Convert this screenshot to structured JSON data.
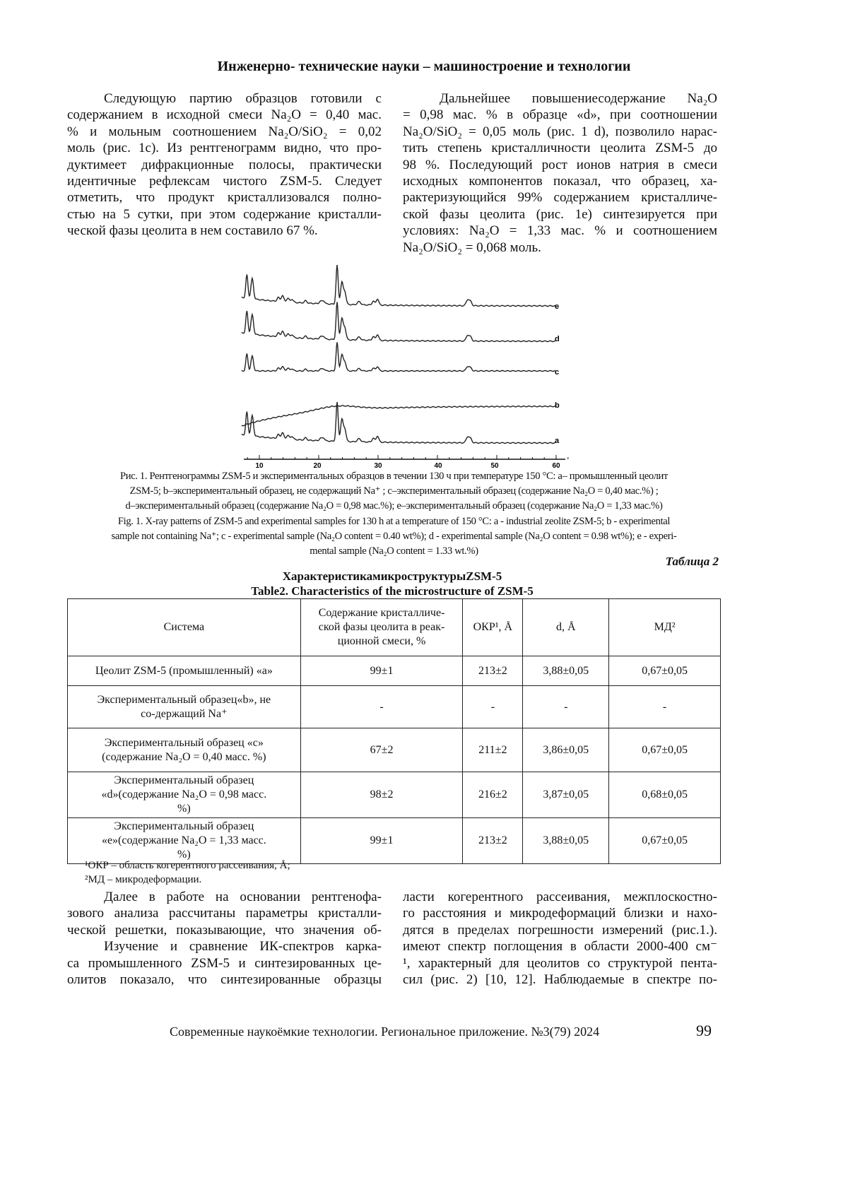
{
  "header": "Инженерно- технические науки – машиностроение и технологии",
  "top_left": [
    "Следующую партию образцов готовили с",
    "содержанием в исходной смеси Na₂O = 0,40 мас.",
    "% и мольным соотношением Na₂O/SiO₂ = 0,02",
    "моль (рис. 1с). Из рентгенограмм видно, что про-",
    "дуктимеет дифракционные полосы, практически",
    "идентичные рефлексам чистого ZSM-5. Следует",
    "отметить, что продукт кристаллизовался полно-",
    "стью на 5 сутки, при этом содержание кристалли-",
    "ческой фазы цеолита в нем составило 67 %."
  ],
  "top_right": [
    "Дальнейшее повышениесодержание Na₂O",
    "= 0,98 мас. % в образце «d», при соотношении",
    "Na₂O/SiO₂ = 0,05 моль (рис. 1 d), позволило нарас-",
    "тить степень кристалличности цеолита ZSM-5 до",
    "98 %. Последующий рост ионов натрия в смеси",
    "исходных компонентов показал, что образец, ха-",
    "рактеризующийся 99% содержанием кристалличе-",
    "ской фазы цеолита (рис. 1е) синтезируется при",
    "условиях: Na₂O = 1,33 мас. % и соотношением",
    "Na₂O/SiO₂ = 0,068 моль."
  ],
  "figure": {
    "x_ticks": [
      "10",
      "20",
      "30",
      "40",
      "50",
      "60"
    ],
    "curve_labels": [
      "e",
      "d",
      "c",
      "b",
      "a"
    ]
  },
  "caption": [
    "Рис. 1. Рентгенограммы ZSM-5 и экспериментальных образцов в течении 130 ч при температуре 150 °С: а– промышленный цеолит",
    "ZSM-5; b–экспериментальный образец, не содержащий Na⁺ ; с–экспериментальный образец (содержание Na₂O = 0,40 мас.%) ;",
    "d–экспериментальный образец (содержание Na₂O = 0,98 мас.%); е–экспериментальный образец (содержание Na₂O = 1,33 мас.%)",
    "Fig. 1. X-ray patterns of ZSM-5 and experimental samples for 130 h at a temperature of 150 °C: a - industrial zeolite ZSM-5; b - experimental",
    "sample not containing Na⁺; c - experimental sample (Na₂O content = 0.40 wt%); d - experimental sample (Na₂O content = 0.98 wt%); e - experi-",
    "mental sample (Na₂O content = 1.33 wt.%)"
  ],
  "table": {
    "label": "Таблица 2",
    "title_ru": "ХарактеристикамикроструктурыZSM-5",
    "title_en": "Table2. Characteristics of the microstructure of ZSM-5",
    "headers": [
      "Система",
      "Содержание кристалличе-ской фазы цеолита в реак-ционной смеси, %",
      "ОКР¹, Å",
      "d, Å",
      "МД²"
    ],
    "rows": [
      [
        "Цеолит ZSM-5 (промышленный) «а»",
        "99±1",
        "213±2",
        "3,88±0,05",
        "0,67±0,05"
      ],
      [
        "Экспериментальный образец«b», не со-держащий Na⁺",
        "-",
        "-",
        "-",
        "-"
      ],
      [
        "Экспериментальный образец «с» (содержание Na₂O = 0,40 масс. %)",
        "67±2",
        "211±2",
        "3,86±0,05",
        "0,67±0,05"
      ],
      [
        "Экспериментальный образец «d»(содержание Na₂O = 0,98 масс. %)",
        "98±2",
        "216±2",
        "3,87±0,05",
        "0,68±0,05"
      ],
      [
        "Экспериментальный образец «е»(содержание Na₂O = 1,33 масс. %)",
        "99±1",
        "213±2",
        "3,88±0,05",
        "0,67±0,05"
      ]
    ],
    "footnotes": [
      "¹ОКР – область когерентного рассеивания, Å;",
      "²МД – микродеформации."
    ]
  },
  "bottom_left": [
    "Далее в работе на основании рентгенофа-",
    "зового анализа рассчитаны параметры кристалли-",
    "ческой решетки, показывающие, что значения об-",
    "Изучение и сравнение ИК-спектров карка-",
    "са промышленного ZSM-5 и синтезированных це-",
    "олитов показало, что синтезированные образцы"
  ],
  "bottom_right": [
    "ласти когерентного рассеивания, межплоскостно-",
    "го расстояния и микродеформаций близки и нахо-",
    "дятся в пределах погрешности измерений (рис.1.).",
    "имеют спектр поглощения в области 2000-400 см⁻",
    "¹, характерный для цеолитов со структурой пента-",
    "сил (рис. 2) [10, 12]. Наблюдаемые в спектре по-"
  ],
  "footer": "Современные наукоёмкие технологии. Региональное приложение. №3(79) 2024",
  "page_number": "99"
}
